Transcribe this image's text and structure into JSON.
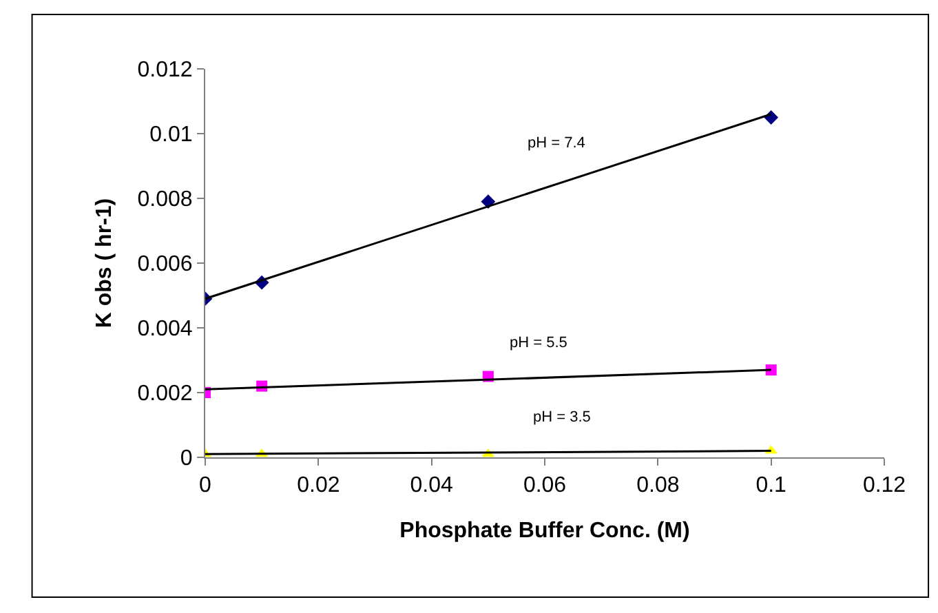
{
  "chart_data": {
    "type": "scatter",
    "xlabel": "Phosphate Buffer Conc. (M)",
    "ylabel": "K obs ( hr-1)",
    "xlim": [
      0,
      0.12
    ],
    "xticks": [
      0,
      0.02,
      0.04,
      0.06,
      0.08,
      0.1,
      0.12
    ],
    "ylim": [
      0,
      0.012
    ],
    "yticks": [
      0,
      0.002,
      0.004,
      0.006,
      0.008,
      0.01,
      0.012
    ],
    "legend": false,
    "series": [
      {
        "marker": "diamond",
        "color": "#000080",
        "x": [
          0,
          0.01,
          0.05,
          0.1
        ],
        "values": [
          0.0049,
          0.0054,
          0.0079,
          0.0105
        ]
      },
      {
        "marker": "square",
        "color": "#ff00ff",
        "x": [
          0,
          0.01,
          0.05,
          0.1
        ],
        "values": [
          0.002,
          0.0022,
          0.0025,
          0.0027
        ]
      },
      {
        "marker": "triangle",
        "color": "#ffff00",
        "x": [
          0,
          0.01,
          0.05,
          0.1
        ],
        "values": [
          0.0001,
          0.0001,
          0.0001,
          0.0002
        ]
      },
      {
        "type": "line",
        "name": "pH = 7.4",
        "marker": "none",
        "color": "#000000",
        "x": [
          0,
          0.1
        ],
        "values": [
          0.0049,
          0.0106
        ]
      },
      {
        "type": "line",
        "name": "pH = 5.5",
        "marker": "none",
        "color": "#000000",
        "x": [
          0,
          0.1
        ],
        "values": [
          0.0021,
          0.0027
        ]
      },
      {
        "type": "line",
        "name": "pH = 3.5",
        "marker": "none",
        "color": "#000000",
        "x": [
          0,
          0.1
        ],
        "values": [
          0.0001,
          0.0002
        ]
      }
    ]
  }
}
